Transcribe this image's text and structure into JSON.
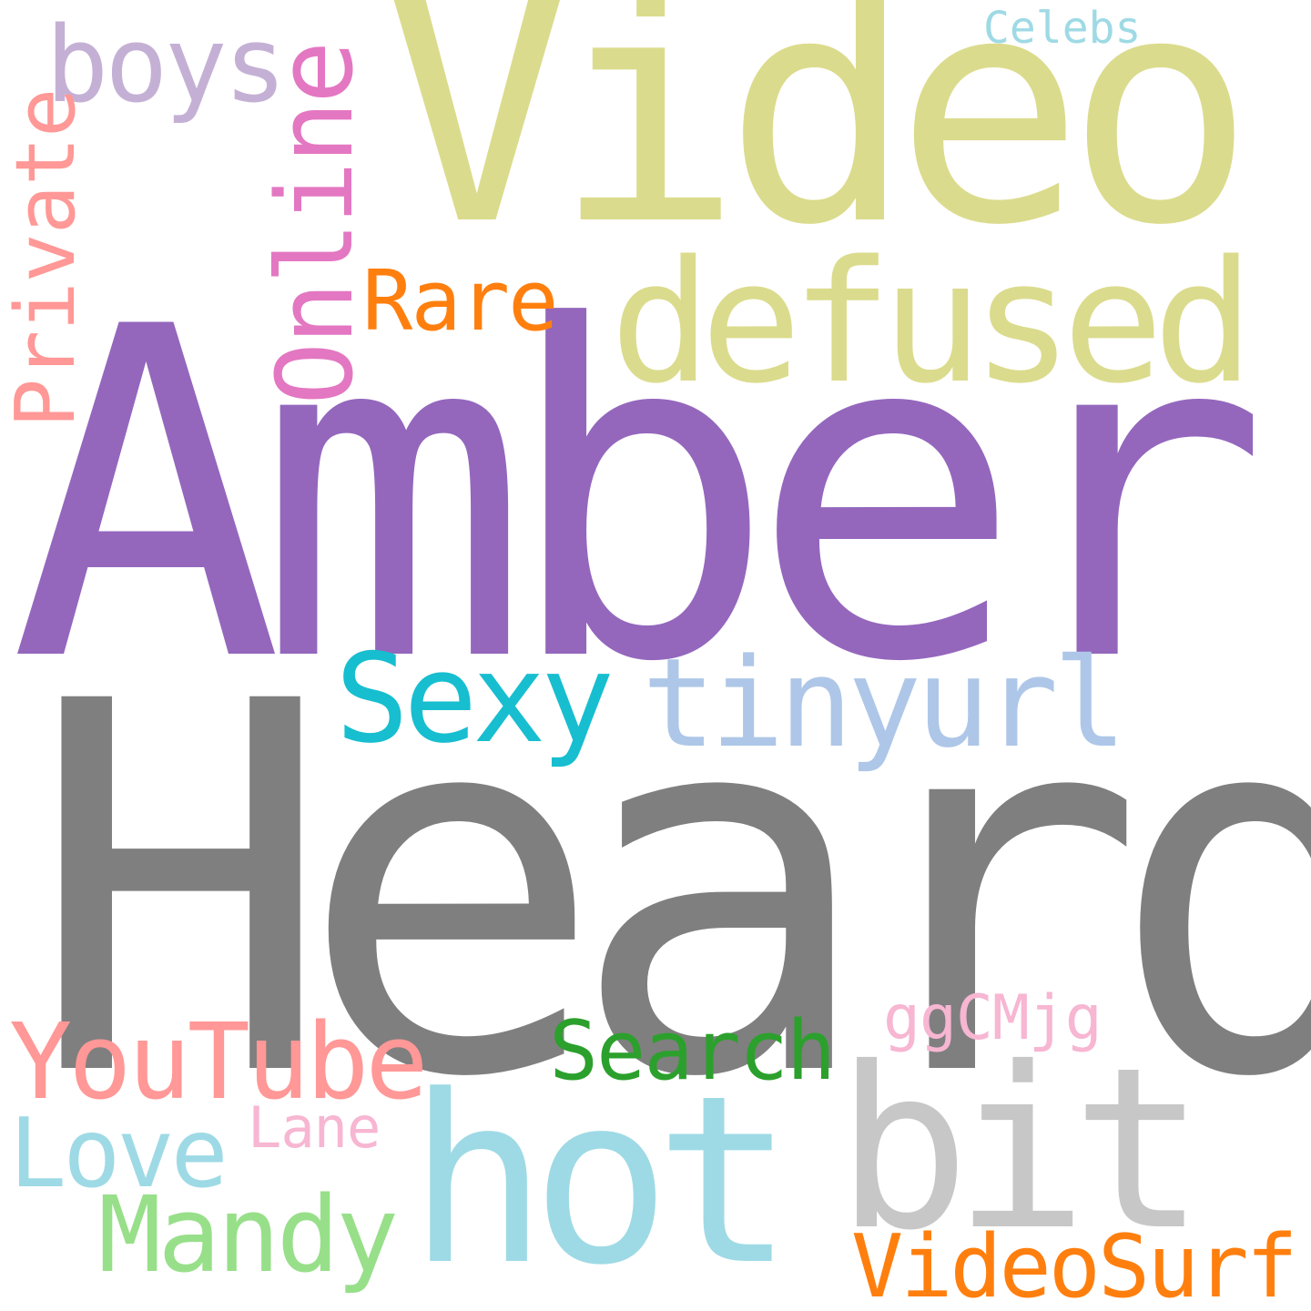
{
  "words": {
    "heard": {
      "text": "Heard",
      "color": "#7f7f7f"
    },
    "amber": {
      "text": "Amber",
      "color": "#9467bd"
    },
    "video": {
      "text": "Video",
      "color": "#dbdb8d"
    },
    "defused": {
      "text": "defused",
      "color": "#dbdb8d"
    },
    "hot": {
      "text": "hot",
      "color": "#9edae5"
    },
    "bit": {
      "text": "bit",
      "color": "#c7c7c7"
    },
    "tinyurl": {
      "text": "tinyurl",
      "color": "#aec7e8"
    },
    "sexy": {
      "text": "Sexy",
      "color": "#17becf"
    },
    "youtube": {
      "text": "YouTube",
      "color": "#ff9896"
    },
    "search": {
      "text": "Search",
      "color": "#2ca02c"
    },
    "videosurf": {
      "text": "VideoSurf",
      "color": "#ff7f0e"
    },
    "mandy": {
      "text": "Mandy",
      "color": "#98df8a"
    },
    "love": {
      "text": "Love",
      "color": "#9edae5"
    },
    "lane": {
      "text": "Lane",
      "color": "#f7b6d2"
    },
    "ggcmjg": {
      "text": "ggCMjg",
      "color": "#f7b6d2"
    },
    "rare": {
      "text": "Rare",
      "color": "#ff7f0e"
    },
    "boys": {
      "text": "boys",
      "color": "#c5b0d5"
    },
    "celebs": {
      "text": "Celebs",
      "color": "#9edae5"
    },
    "online": {
      "text": "Online",
      "color": "#e377c2"
    },
    "private": {
      "text": "Private",
      "color": "#ff9896"
    }
  }
}
